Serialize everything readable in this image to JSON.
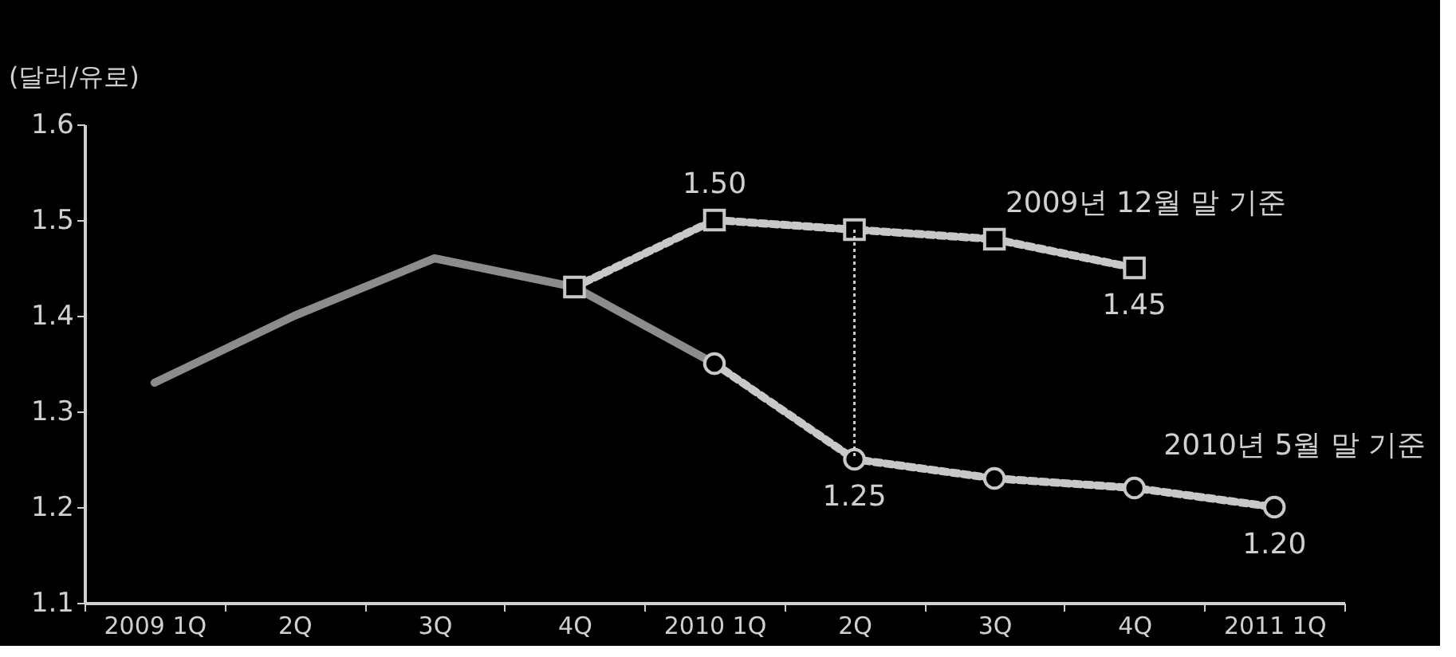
{
  "chart_data": {
    "type": "line",
    "ylabel": "(달러/유로)",
    "categories": [
      "2009 1Q",
      "2Q",
      "3Q",
      "4Q",
      "2010 1Q",
      "2Q",
      "3Q",
      "4Q",
      "2011 1Q"
    ],
    "series": [
      {
        "color": "#8c8c8c",
        "line_style": "solid",
        "marker": "none",
        "values": [
          1.33,
          1.4,
          1.46,
          1.43,
          1.35,
          null,
          null,
          null,
          null
        ]
      },
      {
        "name": "2009년 12월 말 기준",
        "color": "#c8c8c8",
        "line_style": "dotted",
        "marker": "square",
        "values": [
          null,
          null,
          null,
          1.43,
          1.5,
          1.49,
          1.48,
          1.45,
          null
        ],
        "value_labels": [
          null,
          null,
          null,
          null,
          "1.50",
          null,
          null,
          "1.45",
          null
        ]
      },
      {
        "name": "2010년 5월 말 기준",
        "color": "#c8c8c8",
        "line_style": "dotted",
        "marker": "circle",
        "values": [
          null,
          null,
          null,
          null,
          1.35,
          1.25,
          1.23,
          1.22,
          1.2
        ],
        "value_labels": [
          null,
          null,
          null,
          null,
          null,
          "1.25",
          null,
          null,
          "1.20"
        ]
      }
    ],
    "ylim": [
      1.1,
      1.6
    ],
    "yticks": [
      1.1,
      1.2,
      1.3,
      1.4,
      1.5,
      1.6
    ],
    "grid": false
  }
}
